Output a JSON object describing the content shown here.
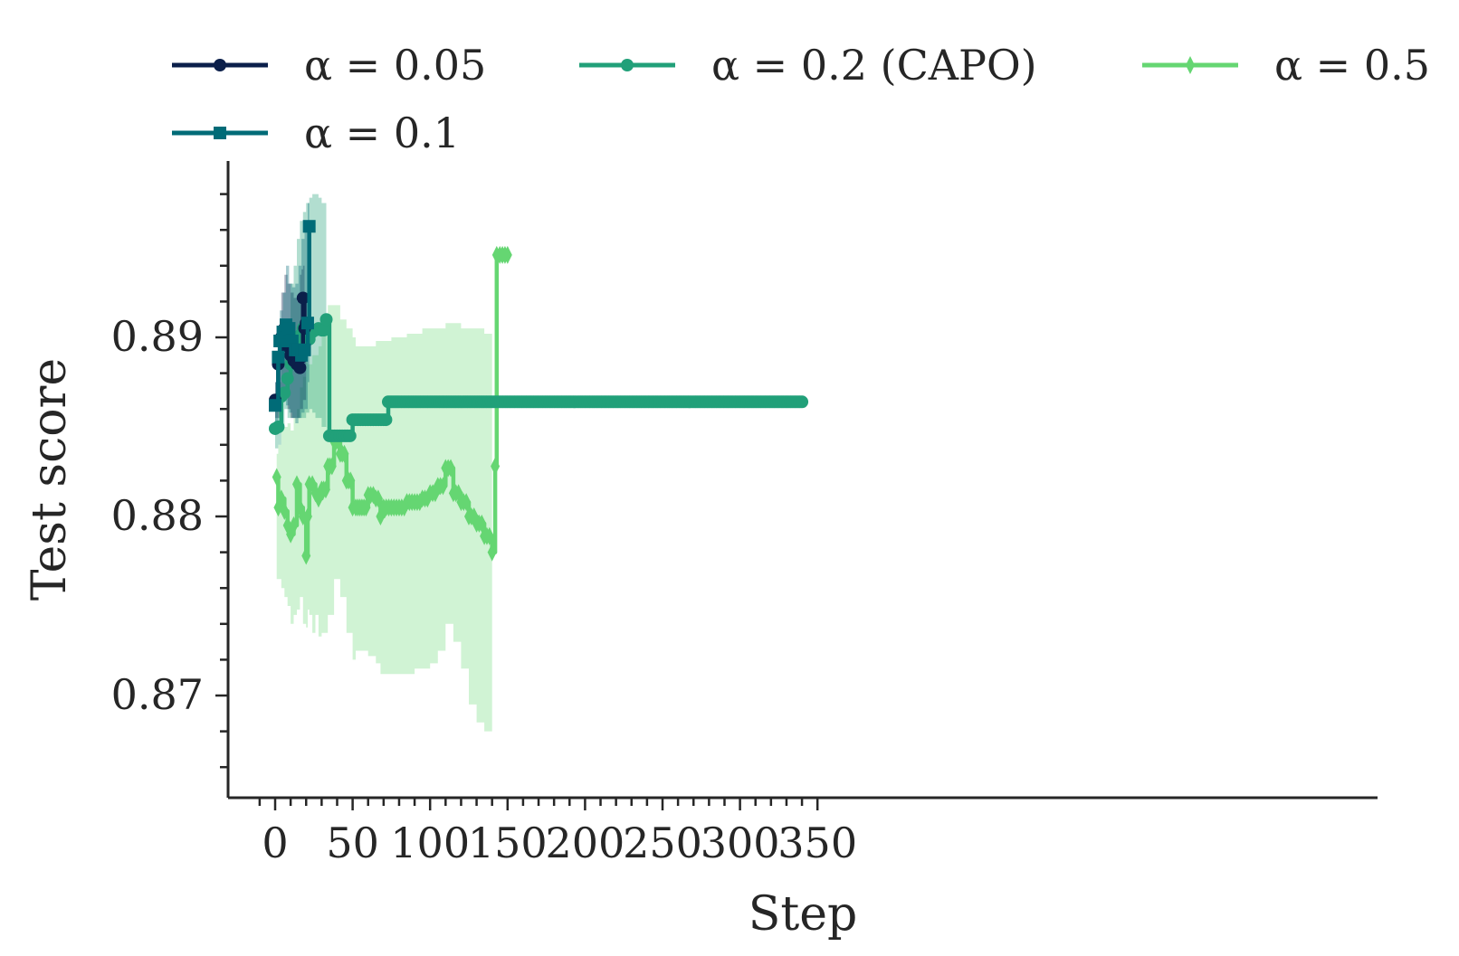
{
  "chart_data": {
    "type": "line",
    "xlabel": "Step",
    "ylabel": "Test score",
    "xlim": [
      -15,
      355
    ],
    "ylim": [
      0.8645,
      0.8987
    ],
    "xticks": [
      0,
      50,
      100,
      150,
      200,
      250,
      300,
      350
    ],
    "xtick_labels": [
      "0",
      "50",
      "100",
      "150",
      "200",
      "250",
      "300",
      "350"
    ],
    "yticks": [
      0.87,
      0.88,
      0.89
    ],
    "ytick_labels": [
      "0.87",
      "0.88",
      "0.89"
    ],
    "grid": false,
    "legend_position": "top",
    "series": [
      {
        "name": "α = 0.05",
        "color": "#0b1f4a",
        "marker": "circle",
        "x": [
          0,
          2,
          4,
          6,
          8,
          10,
          12,
          14,
          16,
          17,
          18,
          19,
          20
        ],
        "y": [
          0.8865,
          0.8885,
          0.89,
          0.8905,
          0.8895,
          0.889,
          0.8887,
          0.8885,
          0.8883,
          0.8889,
          0.8922,
          0.8905,
          0.8908
        ],
        "band_upper": [
          0.8875,
          0.8905,
          0.8925,
          0.8935,
          0.893,
          0.8925,
          0.8922,
          0.892,
          0.8935,
          0.8938,
          0.894,
          0.8925,
          0.8922
        ],
        "band_lower": [
          0.8855,
          0.8855,
          0.887,
          0.887,
          0.886,
          0.8855,
          0.8855,
          0.8855,
          0.886,
          0.886,
          0.8865,
          0.8865,
          0.887
        ]
      },
      {
        "name": "α = 0.1",
        "color": "#006b77",
        "marker": "square",
        "x": [
          0,
          2,
          3,
          5,
          7,
          9,
          11,
          13,
          15,
          17,
          19,
          21,
          22
        ],
        "y": [
          0.8862,
          0.8889,
          0.8898,
          0.8903,
          0.8907,
          0.8905,
          0.8898,
          0.8893,
          0.8893,
          0.889,
          0.8893,
          0.8908,
          0.8962
        ],
        "band_upper": [
          0.8875,
          0.8905,
          0.8915,
          0.8925,
          0.894,
          0.893,
          0.8928,
          0.893,
          0.894,
          0.8955,
          0.8965,
          0.8975,
          0.8975
        ],
        "band_lower": [
          0.8848,
          0.886,
          0.8865,
          0.887,
          0.8862,
          0.8858,
          0.8855,
          0.8852,
          0.8855,
          0.8858,
          0.886,
          0.8875,
          0.8875
        ]
      },
      {
        "name": "α = 0.2 (CAPO)",
        "color": "#21a079",
        "marker": "circle",
        "x": [
          0,
          2,
          4,
          6,
          8,
          10,
          12,
          14,
          16,
          18,
          20,
          22,
          24,
          26,
          28,
          30,
          33,
          35,
          40,
          45,
          50,
          55,
          60,
          65,
          70,
          73,
          80,
          100,
          150,
          200,
          250,
          300,
          340
        ],
        "y": [
          0.8849,
          0.885,
          0.8867,
          0.8869,
          0.8877,
          0.8885,
          0.8893,
          0.8897,
          0.8901,
          0.8905,
          0.8898,
          0.8899,
          0.8903,
          0.8904,
          0.8905,
          0.8904,
          0.891,
          0.8845,
          0.8845,
          0.8845,
          0.8854,
          0.8854,
          0.8854,
          0.8854,
          0.8854,
          0.8864,
          0.8864,
          0.8864,
          0.8864,
          0.8864,
          0.8864,
          0.8864,
          0.8864
        ],
        "band_upper": [
          0.8862,
          0.8875,
          0.889,
          0.8895,
          0.891,
          0.893,
          0.894,
          0.8955,
          0.8965,
          0.897,
          0.8975,
          0.8978,
          0.898,
          0.898,
          0.8978,
          0.8975,
          0.8975
        ],
        "band_lower": [
          0.8838,
          0.884,
          0.885,
          0.886,
          0.8855,
          0.8855,
          0.8855,
          0.8855,
          0.8855,
          0.8855,
          0.8858,
          0.886,
          0.8858,
          0.8855,
          0.8855,
          0.885,
          0.885
        ]
      },
      {
        "name": "α = 0.5",
        "color": "#65d672",
        "marker": "thin_diamond",
        "x": [
          1,
          2,
          4,
          6,
          8,
          10,
          12,
          14,
          16,
          18,
          20,
          21,
          22,
          24,
          26,
          28,
          30,
          34,
          38,
          42,
          46,
          50,
          52,
          56,
          60,
          65,
          68,
          70,
          75,
          80,
          85,
          90,
          95,
          100,
          105,
          110,
          115,
          120,
          125,
          130,
          135,
          140,
          142,
          143,
          145,
          150
        ],
        "y": [
          0.8822,
          0.8805,
          0.881,
          0.8803,
          0.8795,
          0.879,
          0.8795,
          0.8818,
          0.8805,
          0.88,
          0.8778,
          0.88,
          0.8818,
          0.8818,
          0.8813,
          0.881,
          0.8815,
          0.8828,
          0.8842,
          0.8835,
          0.882,
          0.8805,
          0.8805,
          0.8805,
          0.8812,
          0.881,
          0.88,
          0.8805,
          0.8805,
          0.8805,
          0.8808,
          0.8808,
          0.881,
          0.8813,
          0.8817,
          0.8827,
          0.8813,
          0.8808,
          0.88,
          0.8796,
          0.8789,
          0.878,
          0.8828,
          0.8946,
          0.8946,
          0.8946
        ],
        "band_upper": [
          0.8835,
          0.884,
          0.885,
          0.885,
          0.8852,
          0.8848,
          0.8855,
          0.886,
          0.8872,
          0.8878,
          0.8888,
          0.8885,
          0.8885,
          0.889,
          0.889,
          0.8895,
          0.8905,
          0.8918,
          0.8918,
          0.891,
          0.8905,
          0.89,
          0.8895,
          0.8895,
          0.8895,
          0.8898,
          0.8898,
          0.8898,
          0.89,
          0.89,
          0.8902,
          0.8902,
          0.8905,
          0.8905,
          0.8905,
          0.8908,
          0.8908,
          0.8905,
          0.8905,
          0.8905,
          0.8902,
          0.8902
        ],
        "band_lower": [
          0.8765,
          0.8765,
          0.876,
          0.8755,
          0.875,
          0.874,
          0.8745,
          0.8748,
          0.8755,
          0.874,
          0.8738,
          0.8748,
          0.8745,
          0.8735,
          0.8745,
          0.8733,
          0.8735,
          0.8745,
          0.8765,
          0.8755,
          0.8735,
          0.872,
          0.8725,
          0.8725,
          0.8722,
          0.8718,
          0.8712,
          0.8712,
          0.8712,
          0.8712,
          0.8712,
          0.8715,
          0.8715,
          0.8718,
          0.8725,
          0.874,
          0.873,
          0.8715,
          0.8695,
          0.8685,
          0.868,
          0.8665
        ]
      }
    ]
  }
}
